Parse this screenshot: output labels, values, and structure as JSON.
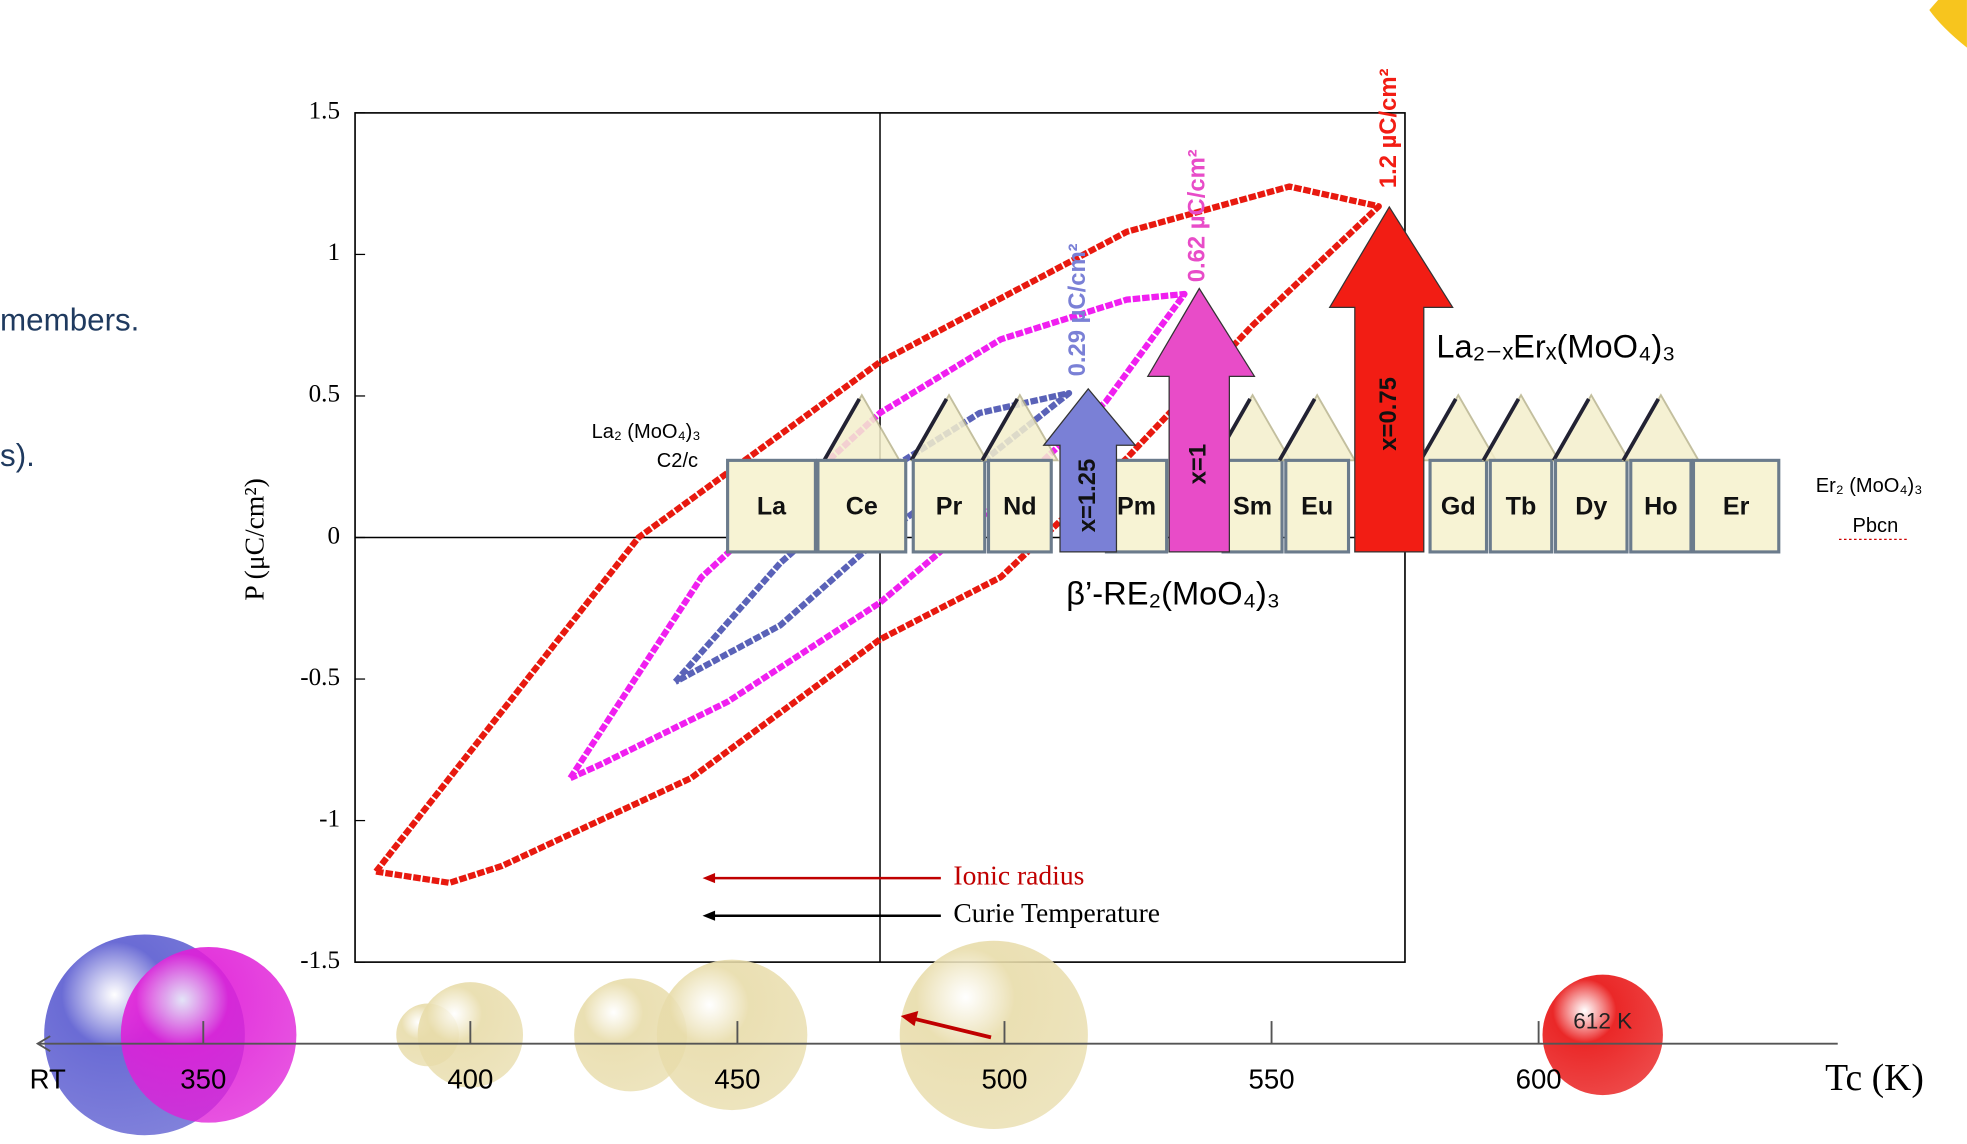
{
  "slide_text": [
    "members.",
    "s)."
  ],
  "chart_data": [
    {
      "type": "loop",
      "ylabel": "P (μC/cm²)",
      "ylim": [
        -1.5,
        1.5
      ],
      "yticks": [
        1.5,
        1,
        0.5,
        0,
        -0.5,
        -1,
        -1.5
      ],
      "xlim": [
        -1,
        1
      ],
      "series": [
        {
          "color": "#e8190f",
          "x": [
            -0.96,
            -0.46,
            0,
            0.47,
            0.78,
            0.95,
            0.71,
            0.47,
            0.23,
            0,
            -0.36,
            -0.72,
            -0.82,
            -0.96
          ],
          "y": [
            -1.18,
            0,
            0.62,
            1.08,
            1.24,
            1.17,
            0.75,
            0.28,
            -0.14,
            -0.36,
            -0.85,
            -1.16,
            -1.22,
            -1.18
          ]
        },
        {
          "color": "#f01ff0",
          "x": [
            -0.59,
            -0.34,
            0,
            0.23,
            0.47,
            0.58,
            0.43,
            0.23,
            0,
            -0.29,
            -0.53,
            -0.59
          ],
          "y": [
            -0.85,
            -0.14,
            0.44,
            0.7,
            0.84,
            0.86,
            0.48,
            0.13,
            -0.23,
            -0.58,
            -0.8,
            -0.85
          ]
        },
        {
          "color": "#5a62b8",
          "x": [
            -0.39,
            -0.19,
            0,
            0.19,
            0.36,
            0.19,
            0,
            -0.19,
            -0.39
          ],
          "y": [
            -0.51,
            -0.09,
            0.22,
            0.44,
            0.51,
            0.26,
            0,
            -0.31,
            -0.51
          ]
        }
      ],
      "elements": [
        "La",
        "Ce",
        "Pr",
        "Nd",
        "Pm",
        "Sm",
        "Eu",
        "Gd",
        "Tb",
        "Dy",
        "Ho",
        "Er"
      ],
      "arrows": [
        {
          "label": "x=1.25",
          "polarization": "0.29 µC/cm²",
          "color": "#7a80d6"
        },
        {
          "label": "x=1",
          "polarization": "0.62 µC/cm²",
          "color": "#e84cc8"
        },
        {
          "label": "x=0.75",
          "polarization": "1.2 µC/cm²",
          "color": "#f21d14"
        }
      ],
      "left_end": {
        "formula": "La₂ (MoO₄)₃",
        "group": "C2/c"
      },
      "right_end": {
        "formula": "Er₂ (MoO₄)₃",
        "group": "Pbcn"
      },
      "family_label": "β’-RE₂(MoO₄)₃",
      "solution_label": "La₂₋ₓErₓ(MoO₄)₃",
      "legend": [
        {
          "text": "Ionic radius",
          "color": "#c00000"
        },
        {
          "text": "Curie Temperature",
          "color": "#000000"
        }
      ]
    },
    {
      "type": "bubble",
      "xlabel": "Tc (K)",
      "origin_label": "RT",
      "xlim": [
        319,
        656
      ],
      "xticks": [
        350,
        400,
        450,
        500,
        550,
        600
      ],
      "x": [
        339,
        351,
        392,
        400,
        430,
        449,
        498,
        612
      ],
      "sizes": [
        80,
        70,
        25,
        42,
        45,
        60,
        75,
        48
      ],
      "colors": [
        "#5a5bd0",
        "#e01fd8",
        "#e8dcaa",
        "#e8dcaa",
        "#e8dcaa",
        "#e8dcaa",
        "#e8dcaa",
        "#e81010"
      ],
      "point_label": "612 K"
    }
  ]
}
